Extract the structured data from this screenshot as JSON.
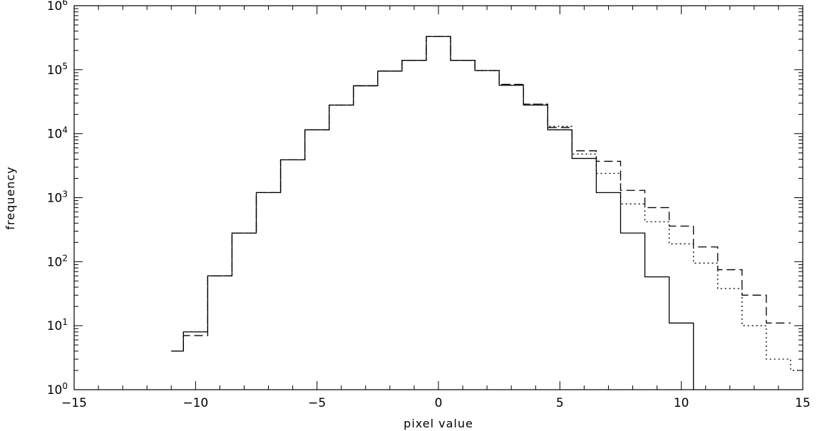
{
  "chart_data": {
    "type": "line",
    "xlabel": "pixel value",
    "ylabel": "frequency",
    "xlim": [
      -15,
      15
    ],
    "ylim_log10": [
      0,
      6
    ],
    "yscale": "log",
    "grid": false,
    "x_ticks": [
      {
        "value": -15,
        "label": "−15"
      },
      {
        "value": -10,
        "label": "−10"
      },
      {
        "value": -5,
        "label": "−5"
      },
      {
        "value": 0,
        "label": "0"
      },
      {
        "value": 5,
        "label": "5"
      },
      {
        "value": 10,
        "label": "10"
      },
      {
        "value": 15,
        "label": "15"
      }
    ],
    "y_ticks": [
      {
        "exp": 0,
        "base": "10",
        "sup": "0"
      },
      {
        "exp": 1,
        "base": "10",
        "sup": "1"
      },
      {
        "exp": 2,
        "base": "10",
        "sup": "2"
      },
      {
        "exp": 3,
        "base": "10",
        "sup": "3"
      },
      {
        "exp": 4,
        "base": "10",
        "sup": "4"
      },
      {
        "exp": 5,
        "base": "10",
        "sup": "5"
      },
      {
        "exp": 6,
        "base": "10",
        "sup": "6"
      }
    ],
    "bin_edges": [
      -11,
      -10.5,
      -9.5,
      -8.5,
      -7.5,
      -6.5,
      -5.5,
      -4.5,
      -3.5,
      -2.5,
      -1.5,
      -0.5,
      0.5,
      1.5,
      2.5,
      3.5,
      4.5,
      5.5,
      6.5,
      7.5,
      8.5,
      9.5,
      10.5,
      11.5,
      12.5,
      13.5,
      14.5,
      15
    ],
    "series": [
      {
        "style": "solid",
        "values": [
          4,
          8,
          60,
          280,
          1200,
          3900,
          11500,
          28000,
          56000,
          95000,
          140000,
          330000,
          140000,
          97000,
          57000,
          28000,
          11500,
          4100,
          1200,
          280,
          58,
          11,
          0,
          null,
          null,
          null,
          null
        ]
      },
      {
        "style": "dashed",
        "values": [
          4,
          7,
          60,
          280,
          1200,
          3900,
          11500,
          28000,
          56000,
          95000,
          140000,
          330000,
          140000,
          97000,
          59000,
          29000,
          12500,
          5400,
          3700,
          1300,
          700,
          360,
          170,
          75,
          30,
          11,
          null
        ]
      },
      {
        "style": "dotted",
        "values": [
          4,
          8,
          60,
          280,
          1200,
          3900,
          11500,
          28000,
          56000,
          95000,
          140000,
          330000,
          140000,
          97000,
          58000,
          29000,
          13000,
          4800,
          2400,
          800,
          420,
          190,
          95,
          38,
          10,
          3,
          2
        ]
      }
    ]
  }
}
